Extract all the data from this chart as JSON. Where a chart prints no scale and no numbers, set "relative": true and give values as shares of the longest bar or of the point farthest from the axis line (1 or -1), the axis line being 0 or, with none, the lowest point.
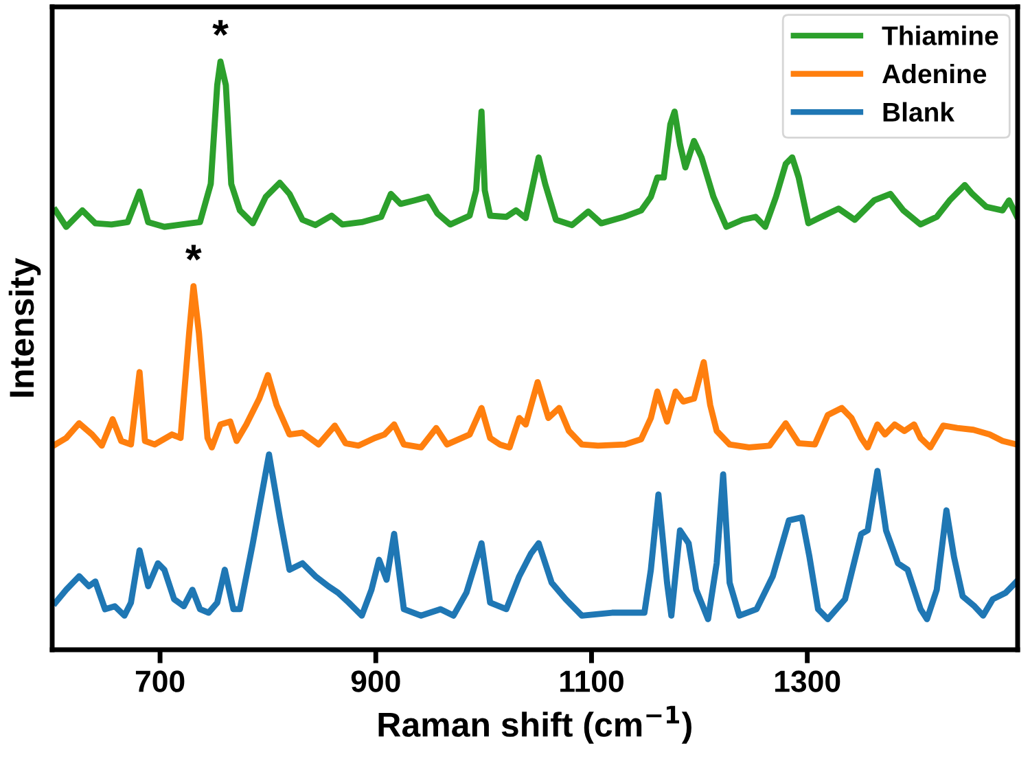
{
  "chart_data": {
    "type": "line",
    "relative": true,
    "xlabel": "Raman shift (cm$^{−1}$)",
    "ylabel": "Intensity",
    "xlim": [
      600,
      1495
    ],
    "xticks": [
      700,
      900,
      1100,
      1300
    ],
    "legend": "top right",
    "line_style": "solid",
    "annotations": [
      {
        "text": "*",
        "x": 756,
        "y": 1.0
      },
      {
        "text": "*",
        "x": 731,
        "y": 0.618
      }
    ],
    "series": [
      {
        "name": "Thiamine",
        "color": "#2ca02c",
        "x": [
          603,
          613,
          628,
          640,
          655,
          670,
          681,
          689,
          704,
          728,
          737,
          747,
          753,
          756,
          761,
          766,
          774,
          786,
          798,
          811,
          820,
          832,
          844,
          859,
          869,
          887,
          905,
          914,
          923,
          936,
          948,
          957,
          969,
          987,
          993,
          998,
          1001,
          1006,
          1021,
          1030,
          1039,
          1051,
          1057,
          1067,
          1082,
          1097,
          1109,
          1130,
          1146,
          1155,
          1161,
          1167,
          1173,
          1177,
          1182,
          1187,
          1195,
          1202,
          1213,
          1225,
          1240,
          1252,
          1261,
          1271,
          1280,
          1286,
          1292,
          1301,
          1313,
          1329,
          1344,
          1362,
          1377,
          1389,
          1405,
          1420,
          1432,
          1446,
          1453,
          1466,
          1481,
          1487,
          1494
        ],
        "values": [
          0.747,
          0.719,
          0.747,
          0.725,
          0.723,
          0.727,
          0.779,
          0.727,
          0.719,
          0.725,
          0.727,
          0.792,
          0.96,
          1.0,
          0.96,
          0.792,
          0.747,
          0.725,
          0.77,
          0.794,
          0.775,
          0.731,
          0.722,
          0.738,
          0.723,
          0.727,
          0.736,
          0.775,
          0.758,
          0.764,
          0.77,
          0.742,
          0.723,
          0.738,
          0.781,
          0.915,
          0.781,
          0.738,
          0.736,
          0.747,
          0.734,
          0.837,
          0.792,
          0.731,
          0.722,
          0.745,
          0.725,
          0.736,
          0.747,
          0.77,
          0.803,
          0.803,
          0.893,
          0.915,
          0.859,
          0.82,
          0.865,
          0.837,
          0.77,
          0.719,
          0.731,
          0.736,
          0.719,
          0.77,
          0.826,
          0.837,
          0.803,
          0.725,
          0.736,
          0.75,
          0.731,
          0.764,
          0.775,
          0.747,
          0.723,
          0.736,
          0.764,
          0.79,
          0.775,
          0.753,
          0.747,
          0.764,
          0.738
        ]
      },
      {
        "name": "Adenine",
        "color": "#ff7f0e",
        "x": [
          603,
          613,
          625,
          637,
          646,
          656,
          664,
          673,
          681,
          686,
          695,
          711,
          719,
          727,
          731,
          736,
          744,
          748,
          756,
          765,
          771,
          780,
          792,
          800,
          808,
          820,
          832,
          847,
          862,
          872,
          884,
          899,
          908,
          917,
          926,
          942,
          956,
          966,
          987,
          998,
          1006,
          1015,
          1024,
          1033,
          1039,
          1050,
          1060,
          1070,
          1079,
          1091,
          1106,
          1131,
          1146,
          1155,
          1161,
          1170,
          1178,
          1185,
          1195,
          1204,
          1210,
          1216,
          1228,
          1246,
          1265,
          1280,
          1292,
          1307,
          1319,
          1332,
          1341,
          1350,
          1356,
          1365,
          1372,
          1381,
          1390,
          1399,
          1405,
          1414,
          1426,
          1439,
          1454,
          1469,
          1481,
          1494
        ],
        "values": [
          0.349,
          0.36,
          0.385,
          0.366,
          0.347,
          0.392,
          0.355,
          0.349,
          0.472,
          0.355,
          0.349,
          0.366,
          0.36,
          0.539,
          0.618,
          0.539,
          0.36,
          0.344,
          0.383,
          0.388,
          0.355,
          0.383,
          0.427,
          0.467,
          0.416,
          0.366,
          0.369,
          0.349,
          0.381,
          0.351,
          0.347,
          0.36,
          0.366,
          0.383,
          0.349,
          0.344,
          0.377,
          0.349,
          0.366,
          0.411,
          0.36,
          0.349,
          0.344,
          0.394,
          0.383,
          0.455,
          0.394,
          0.411,
          0.372,
          0.349,
          0.347,
          0.349,
          0.358,
          0.394,
          0.439,
          0.388,
          0.439,
          0.422,
          0.427,
          0.489,
          0.416,
          0.372,
          0.349,
          0.344,
          0.347,
          0.385,
          0.351,
          0.349,
          0.399,
          0.411,
          0.394,
          0.36,
          0.344,
          0.383,
          0.366,
          0.383,
          0.372,
          0.383,
          0.36,
          0.344,
          0.381,
          0.377,
          0.374,
          0.366,
          0.355,
          0.349
        ]
      },
      {
        "name": "Blank",
        "color": "#1f77b4",
        "x": [
          603,
          613,
          625,
          634,
          640,
          649,
          658,
          667,
          673,
          681,
          689,
          698,
          704,
          713,
          722,
          730,
          737,
          745,
          753,
          760,
          768,
          774,
          786,
          801,
          811,
          820,
          832,
          844,
          856,
          865,
          875,
          887,
          896,
          903,
          910,
          917,
          926,
          942,
          960,
          972,
          984,
          998,
          1006,
          1021,
          1033,
          1044,
          1051,
          1063,
          1076,
          1091,
          1119,
          1149,
          1155,
          1162,
          1170,
          1174,
          1182,
          1190,
          1197,
          1208,
          1216,
          1222,
          1228,
          1237,
          1253,
          1268,
          1283,
          1295,
          1302,
          1310,
          1319,
          1335,
          1350,
          1356,
          1365,
          1373,
          1384,
          1393,
          1405,
          1411,
          1420,
          1429,
          1436,
          1444,
          1455,
          1463,
          1472,
          1484,
          1494
        ],
        "values": [
          0.08,
          0.102,
          0.125,
          0.108,
          0.116,
          0.069,
          0.074,
          0.058,
          0.08,
          0.169,
          0.108,
          0.147,
          0.136,
          0.086,
          0.074,
          0.102,
          0.069,
          0.063,
          0.08,
          0.136,
          0.069,
          0.069,
          0.181,
          0.332,
          0.225,
          0.136,
          0.147,
          0.125,
          0.108,
          0.097,
          0.08,
          0.058,
          0.102,
          0.153,
          0.119,
          0.197,
          0.069,
          0.058,
          0.069,
          0.058,
          0.097,
          0.181,
          0.08,
          0.069,
          0.125,
          0.164,
          0.181,
          0.114,
          0.086,
          0.058,
          0.063,
          0.063,
          0.136,
          0.264,
          0.114,
          0.058,
          0.203,
          0.181,
          0.102,
          0.052,
          0.147,
          0.298,
          0.114,
          0.058,
          0.069,
          0.125,
          0.22,
          0.225,
          0.158,
          0.069,
          0.052,
          0.086,
          0.197,
          0.203,
          0.304,
          0.203,
          0.147,
          0.136,
          0.069,
          0.052,
          0.102,
          0.237,
          0.158,
          0.091,
          0.074,
          0.058,
          0.086,
          0.097,
          0.116
        ]
      }
    ]
  }
}
